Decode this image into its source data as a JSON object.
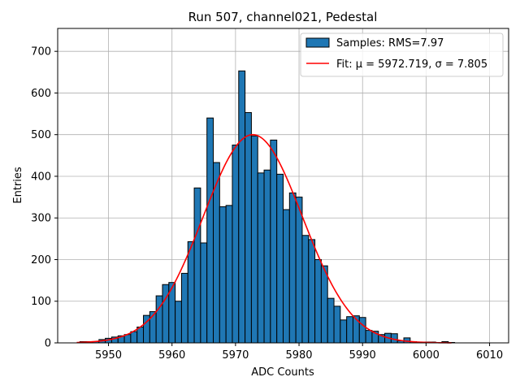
{
  "chart_data": {
    "type": "bar",
    "title": "Run 507, channel021, Pedestal",
    "xlabel": "ADC Counts",
    "ylabel": "Entries",
    "xlim": [
      5942,
      6013
    ],
    "ylim": [
      0,
      755
    ],
    "xticks": [
      5950,
      5960,
      5970,
      5980,
      5990,
      6000,
      6010
    ],
    "yticks": [
      0,
      100,
      200,
      300,
      400,
      500,
      600,
      700
    ],
    "grid": true,
    "legend_position": "top-right",
    "bin_width": 1,
    "bar_color": "#1f77b4",
    "fit_color": "#ff0000",
    "histogram": {
      "name": "Samples: RMS=7.97",
      "bins": [
        [
          5946,
          3
        ],
        [
          5947,
          3
        ],
        [
          5948,
          3
        ],
        [
          5949,
          8
        ],
        [
          5950,
          11
        ],
        [
          5951,
          14
        ],
        [
          5952,
          17
        ],
        [
          5953,
          20
        ],
        [
          5954,
          27
        ],
        [
          5955,
          38
        ],
        [
          5956,
          66
        ],
        [
          5957,
          75
        ],
        [
          5958,
          113
        ],
        [
          5959,
          140
        ],
        [
          5960,
          145
        ],
        [
          5961,
          100
        ],
        [
          5962,
          167
        ],
        [
          5963,
          243
        ],
        [
          5964,
          372
        ],
        [
          5965,
          240
        ],
        [
          5966,
          540
        ],
        [
          5967,
          433
        ],
        [
          5968,
          327
        ],
        [
          5969,
          330
        ],
        [
          5970,
          475
        ],
        [
          5971,
          653
        ],
        [
          5972,
          553
        ],
        [
          5973,
          497
        ],
        [
          5974,
          408
        ],
        [
          5975,
          415
        ],
        [
          5976,
          487
        ],
        [
          5977,
          405
        ],
        [
          5978,
          320
        ],
        [
          5979,
          360
        ],
        [
          5980,
          350
        ],
        [
          5981,
          258
        ],
        [
          5982,
          248
        ],
        [
          5983,
          200
        ],
        [
          5984,
          185
        ],
        [
          5985,
          107
        ],
        [
          5986,
          88
        ],
        [
          5987,
          55
        ],
        [
          5988,
          63
        ],
        [
          5989,
          65
        ],
        [
          5990,
          61
        ],
        [
          5991,
          30
        ],
        [
          5992,
          28
        ],
        [
          5993,
          20
        ],
        [
          5994,
          23
        ],
        [
          5995,
          22
        ],
        [
          5996,
          5
        ],
        [
          5997,
          12
        ],
        [
          5998,
          3
        ],
        [
          5999,
          2
        ],
        [
          6000,
          2
        ],
        [
          6001,
          2
        ],
        [
          6002,
          1
        ],
        [
          6003,
          3
        ],
        [
          6004,
          1
        ]
      ]
    },
    "fit": {
      "name": "Fit: μ = 5972.719, σ = 7.805",
      "mu": 5972.719,
      "sigma": 7.805,
      "amplitude": 500,
      "x_range": [
        5945,
        6004
      ]
    }
  }
}
